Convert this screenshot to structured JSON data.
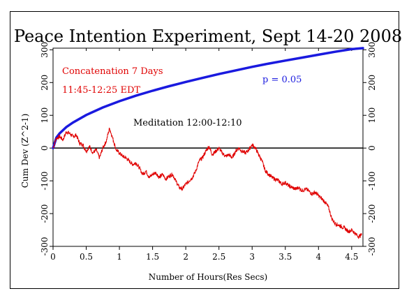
{
  "chart_data": {
    "type": "line",
    "title": "Peace Intention Experiment, Sept 14-20 2008",
    "xlabel": "Number of Hours(Res Secs)",
    "ylabel": "Cum Dev (Z^2-1)",
    "xlim": [
      0,
      4.67
    ],
    "ylim": [
      -300,
      305
    ],
    "x_ticks": [
      "0",
      "0.5",
      "1",
      "1.5",
      "2",
      "2.5",
      "3",
      "3.5",
      "4",
      "4.5"
    ],
    "y_ticks": [
      "-300",
      "-200",
      "-100",
      "0",
      "100",
      "200",
      "300"
    ],
    "annotations": {
      "concat": "Concatenation 7 Days",
      "time": "11:45-12:25 EDT",
      "meditation": "Meditation 12:00-12:10",
      "p_label": "p = 0.05"
    },
    "colors": {
      "data": "#e00000",
      "p_curve": "#1a1adf",
      "axis": "#000000"
    },
    "series": [
      {
        "x": [
          0,
          0.05,
          0.1,
          0.15,
          0.2,
          0.25,
          0.3,
          0.35,
          0.4,
          0.45,
          0.5,
          0.55,
          0.6,
          0.65,
          0.7,
          0.75,
          0.8,
          0.85,
          0.9,
          0.95,
          1.0,
          1.05,
          1.1,
          1.15,
          1.2,
          1.25,
          1.3,
          1.35,
          1.4,
          1.45,
          1.5,
          1.55,
          1.6,
          1.65,
          1.7,
          1.75,
          1.8,
          1.85,
          1.9,
          1.95,
          2.0,
          2.05,
          2.1,
          2.15,
          2.2,
          2.25,
          2.3,
          2.35,
          2.4,
          2.45,
          2.5,
          2.55,
          2.6,
          2.65,
          2.7,
          2.75,
          2.8,
          2.85,
          2.9,
          2.95,
          3.0,
          3.05,
          3.1,
          3.15,
          3.2,
          3.25,
          3.3,
          3.35,
          3.4,
          3.45,
          3.5,
          3.55,
          3.6,
          3.65,
          3.7,
          3.75,
          3.8,
          3.85,
          3.9,
          3.95,
          4.0,
          4.05,
          4.1,
          4.15,
          4.2,
          4.25,
          4.3,
          4.35,
          4.4,
          4.45,
          4.5,
          4.55,
          4.6,
          4.65
        ],
        "values": [
          0,
          30,
          35,
          25,
          50,
          45,
          35,
          40,
          15,
          10,
          -10,
          5,
          -15,
          -5,
          -30,
          0,
          20,
          60,
          30,
          -5,
          -15,
          -25,
          -30,
          -40,
          -50,
          -45,
          -60,
          -80,
          -70,
          -90,
          -80,
          -75,
          -90,
          -80,
          -95,
          -85,
          -80,
          -100,
          -120,
          -125,
          -110,
          -100,
          -90,
          -70,
          -40,
          -30,
          -10,
          5,
          -20,
          -10,
          0,
          -15,
          -25,
          -20,
          -30,
          -10,
          0,
          -10,
          -15,
          -5,
          10,
          0,
          -20,
          -40,
          -70,
          -80,
          -90,
          -95,
          -100,
          -110,
          -105,
          -115,
          -120,
          -125,
          -120,
          -130,
          -125,
          -130,
          -140,
          -135,
          -145,
          -155,
          -165,
          -180,
          -215,
          -230,
          -235,
          -240,
          -245,
          -255,
          -250,
          -260,
          -270,
          -265
        ]
      },
      {
        "x": [
          0,
          0.05,
          0.1,
          0.2,
          0.3,
          0.5,
          0.75,
          1.0,
          1.25,
          1.5,
          1.75,
          2.0,
          2.25,
          2.5,
          2.75,
          3.0,
          3.25,
          3.5,
          3.75,
          4.0,
          4.25,
          4.5,
          4.67
        ],
        "values": [
          0,
          32,
          45,
          64,
          78,
          101,
          124,
          143,
          160,
          175,
          189,
          202,
          214,
          226,
          237,
          248,
          258,
          267,
          276,
          285,
          294,
          302,
          308
        ]
      }
    ]
  }
}
